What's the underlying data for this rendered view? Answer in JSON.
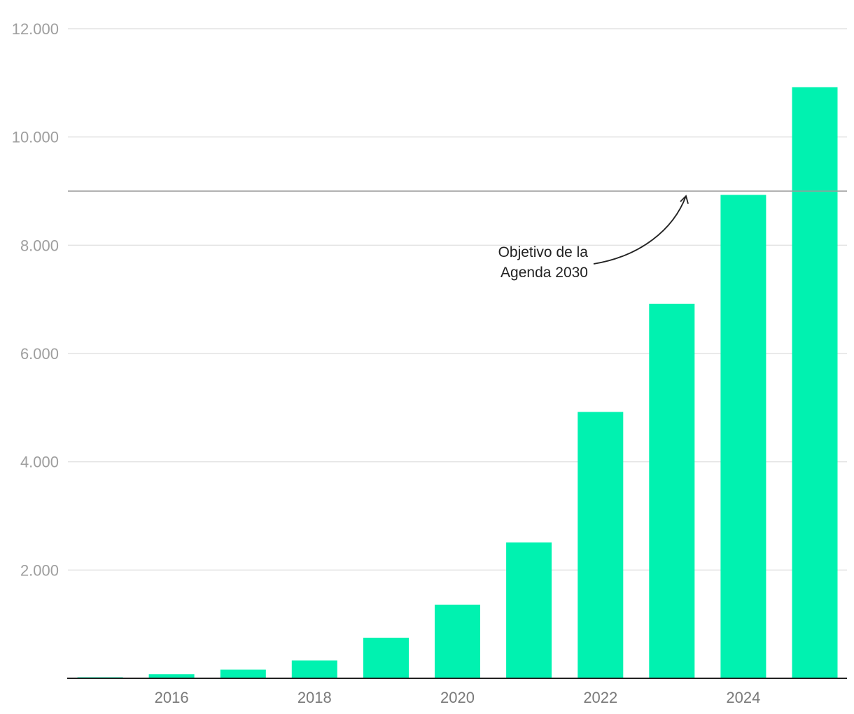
{
  "chart_data": {
    "type": "bar",
    "title": "",
    "xlabel": "",
    "ylabel": "",
    "categories": [
      "2015",
      "2016",
      "2017",
      "2018",
      "2019",
      "2020",
      "2021",
      "2022",
      "2023",
      "2024",
      "2025"
    ],
    "values": [
      20,
      75,
      160,
      330,
      750,
      1360,
      2510,
      4920,
      6920,
      8930,
      10920
    ],
    "ylim": [
      0,
      12000
    ],
    "y_ticks": [
      {
        "value": 2000,
        "label": "2.000"
      },
      {
        "value": 4000,
        "label": "4.000"
      },
      {
        "value": 6000,
        "label": "6.000"
      },
      {
        "value": 8000,
        "label": "8.000"
      },
      {
        "value": 10000,
        "label": "10.000"
      },
      {
        "value": 12000,
        "label": "12.000"
      }
    ],
    "x_tick_labels": [
      "2016",
      "2018",
      "2020",
      "2022",
      "2024"
    ],
    "reference_line": {
      "value": 9000,
      "label_lines": [
        "Objetivo de la",
        "Agenda 2030"
      ]
    },
    "grid": true,
    "legend": "none",
    "bar_color": "#00f2b0"
  }
}
